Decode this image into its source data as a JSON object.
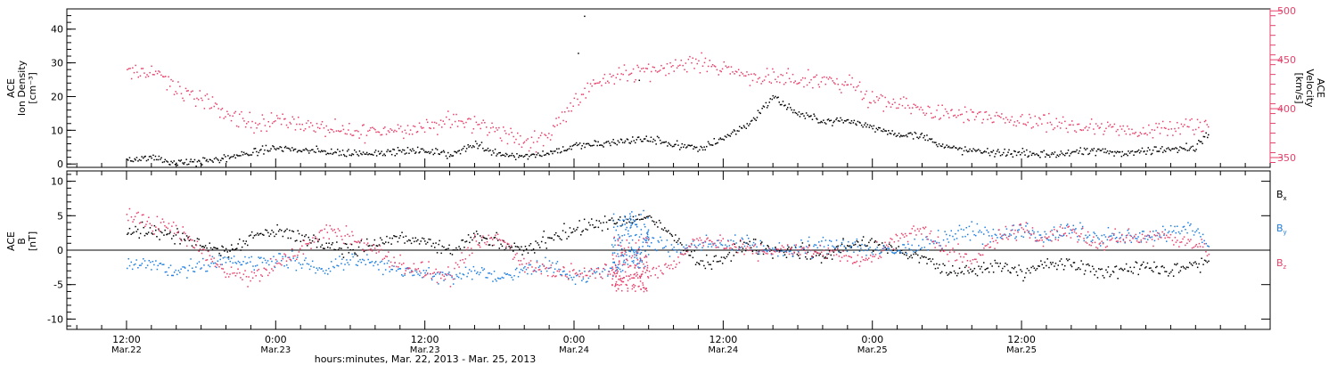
{
  "chart_data": [
    {
      "type": "scatter",
      "panel": "ion-density-velocity",
      "ylabel_lines": [
        "ACE",
        "Ion Density",
        "[cm⁻³]"
      ],
      "y2label_lines": [
        "ACE",
        "Velocity",
        "[km/s]"
      ],
      "ylim": [
        -1,
        46
      ],
      "y2lim": [
        340,
        502
      ],
      "yticks": [
        0,
        10,
        20,
        30,
        40
      ],
      "y2ticks": [
        350,
        400,
        450,
        500
      ],
      "y_tick_labels": [
        "0",
        "10",
        "20",
        "30",
        "40"
      ],
      "y2_tick_labels": [
        "350",
        "400",
        "450",
        "500"
      ],
      "series": [
        {
          "key": "density",
          "color": "#000000",
          "axis": "left",
          "x_hours": [
            0,
            2,
            4,
            6,
            8,
            10,
            12,
            14,
            16,
            18,
            20,
            22,
            24,
            26,
            28,
            30,
            32,
            34,
            36,
            38,
            40,
            42,
            44,
            46,
            48,
            50,
            52,
            54,
            56,
            58,
            60,
            62,
            64,
            66,
            68,
            70,
            72,
            74,
            76,
            78,
            80,
            82,
            84,
            86,
            87
          ],
          "values": [
            1.5,
            2.0,
            0.5,
            0.8,
            2.0,
            3.5,
            5.0,
            4.2,
            3.8,
            3.3,
            3.5,
            4.0,
            4.0,
            3.0,
            6.0,
            3.2,
            2.5,
            3.5,
            5.5,
            6.0,
            7.0,
            7.5,
            6.0,
            4.5,
            8.0,
            12.0,
            20.0,
            15.0,
            13.0,
            13.0,
            11.0,
            9.0,
            8.5,
            5.0,
            4.0,
            3.5,
            3.5,
            3.0,
            3.5,
            4.0,
            3.5,
            4.0,
            4.5,
            5.0,
            10.0
          ],
          "noise": 0.9,
          "count": 880
        },
        {
          "key": "velocity",
          "color": "#e8406a",
          "axis": "right",
          "x_hours": [
            0,
            1,
            2,
            3,
            4,
            6,
            8,
            10,
            12,
            14,
            16,
            18,
            20,
            22,
            24,
            26,
            28,
            30,
            32,
            34,
            36,
            38,
            40,
            42,
            44,
            46,
            48,
            50,
            52,
            54,
            56,
            58,
            60,
            62,
            64,
            66,
            68,
            70,
            72,
            74,
            76,
            78,
            80,
            82,
            84,
            86,
            87
          ],
          "values": [
            437,
            437,
            440,
            430,
            420,
            410,
            395,
            385,
            390,
            385,
            380,
            375,
            378,
            380,
            382,
            388,
            385,
            378,
            365,
            375,
            410,
            430,
            435,
            440,
            445,
            448,
            442,
            435,
            430,
            430,
            430,
            428,
            408,
            405,
            400,
            395,
            392,
            390,
            388,
            385,
            383,
            380,
            378,
            378,
            380,
            384,
            382
          ],
          "noise": 7,
          "count": 760
        }
      ],
      "outliers": [
        {
          "x_hours": 36.8,
          "value": 44
        },
        {
          "x_hours": 36.3,
          "value": 33
        },
        {
          "x_hours": 41.2,
          "value": 25
        }
      ]
    },
    {
      "type": "scatter",
      "panel": "imf-components",
      "ylabel_lines": [
        "ACE",
        "B",
        "[nT]"
      ],
      "ylim": [
        -11.5,
        11.5
      ],
      "yticks": [
        -10,
        -5,
        0,
        5,
        10
      ],
      "y_tick_labels": [
        "-10",
        "-5",
        "0",
        "5",
        "10"
      ],
      "zero_line": true,
      "series": [
        {
          "key": "bx",
          "name": "Bx",
          "legend_main": "B",
          "legend_sub": "x",
          "color": "#000000",
          "x_hours": [
            0,
            2,
            4,
            6,
            8,
            10,
            12,
            14,
            16,
            18,
            20,
            22,
            24,
            26,
            28,
            30,
            32,
            34,
            36,
            38,
            40,
            42,
            44,
            46,
            48,
            50,
            52,
            54,
            56,
            58,
            60,
            62,
            64,
            66,
            68,
            70,
            72,
            74,
            76,
            78,
            80,
            82,
            84,
            86,
            87
          ],
          "values": [
            3,
            3,
            2,
            1,
            0,
            2,
            3,
            2,
            1,
            0,
            1,
            2,
            1,
            0,
            2,
            1,
            0,
            2,
            3,
            4,
            4,
            5,
            2,
            -2,
            -1,
            1,
            0,
            0,
            -1,
            1,
            1,
            0,
            -1,
            -3,
            -3,
            -2,
            -3,
            -2,
            -2,
            -3,
            -3,
            -2,
            -3,
            -2,
            -2
          ],
          "noise": 0.8,
          "count": 800
        },
        {
          "key": "by",
          "name": "By",
          "legend_main": "B",
          "legend_sub": "y",
          "color": "#1e7fe0",
          "x_hours": [
            0,
            2,
            4,
            6,
            8,
            10,
            12,
            14,
            16,
            18,
            20,
            22,
            24,
            26,
            28,
            30,
            32,
            34,
            36,
            38,
            40,
            42,
            44,
            46,
            48,
            50,
            52,
            54,
            56,
            58,
            60,
            62,
            64,
            66,
            68,
            70,
            72,
            74,
            76,
            78,
            80,
            82,
            84,
            86,
            87
          ],
          "values": [
            -2,
            -2,
            -3,
            -2,
            -1,
            -2,
            -1,
            -2,
            -3,
            -1,
            -2,
            -3,
            -3,
            -4,
            -3,
            -4,
            -3,
            -2,
            -4,
            -3,
            -2,
            2,
            0,
            1,
            1,
            1,
            0,
            0,
            1,
            1,
            0,
            0,
            1,
            2,
            3,
            2,
            3,
            2,
            3,
            2,
            2,
            2,
            3,
            3,
            1
          ],
          "noise": 0.9,
          "count": 800
        },
        {
          "key": "bz",
          "name": "Bz",
          "legend_main": "B",
          "legend_sub": "z",
          "color": "#e8406a",
          "x_hours": [
            0,
            2,
            4,
            6,
            8,
            10,
            12,
            14,
            16,
            18,
            20,
            22,
            24,
            26,
            28,
            30,
            32,
            34,
            36,
            38,
            40,
            42,
            44,
            46,
            48,
            50,
            52,
            54,
            56,
            58,
            60,
            62,
            64,
            66,
            68,
            70,
            72,
            74,
            76,
            78,
            80,
            82,
            84,
            86,
            87
          ],
          "values": [
            5,
            4,
            3,
            0,
            -3,
            -4,
            -2,
            0,
            3,
            2,
            0,
            -2,
            -3,
            -4,
            1,
            2,
            -2,
            -3,
            -3,
            -3,
            -4,
            -3,
            -2,
            2,
            1,
            0,
            0,
            0,
            0,
            -1,
            -1,
            2,
            3,
            0,
            -2,
            2,
            3,
            2,
            3,
            1,
            2,
            2,
            2,
            1,
            0
          ],
          "noise": 0.9,
          "count": 800
        }
      ],
      "bursts": [
        {
          "x_hours": [
            39,
            42
          ],
          "amplitude": 10,
          "series": [
            "by",
            "bz"
          ]
        }
      ]
    }
  ],
  "x_axis": {
    "xlim_hours": [
      -4.8,
      92
    ],
    "major_ticks": [
      {
        "hour": 0,
        "time": "12:00",
        "date": "Mar.22"
      },
      {
        "hour": 12,
        "time": "0:00",
        "date": "Mar.23"
      },
      {
        "hour": 24,
        "time": "12:00",
        "date": "Mar.23"
      },
      {
        "hour": 36,
        "time": "0:00",
        "date": "Mar.24"
      },
      {
        "hour": 48,
        "time": "12:00",
        "date": "Mar.24"
      },
      {
        "hour": 60,
        "time": "0:00",
        "date": "Mar.25"
      },
      {
        "hour": 72,
        "time": "12:00",
        "date": "Mar.25"
      }
    ],
    "xlabel": "hours:minutes, Mar. 22, 2013 - Mar. 25, 2013"
  },
  "colors": {
    "black": "#000000",
    "pink": "#e8406a",
    "blue": "#1e7fe0"
  }
}
